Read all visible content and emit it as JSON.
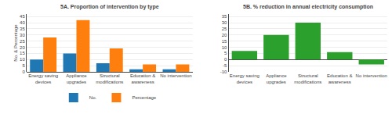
{
  "chart_data": [
    {
      "type": "bar",
      "title": "5A. Proportion of intervention by type",
      "categories": [
        "Energy saving\ndevices",
        "Appliance\nupgrades",
        "Structural\nmodifications",
        "Education &\nawareness",
        "No intervention"
      ],
      "series": [
        {
          "name": "No.",
          "values": [
            10,
            15,
            7,
            2,
            2
          ]
        },
        {
          "name": "Percentage",
          "values": [
            28,
            42,
            19,
            6,
            6
          ]
        }
      ],
      "ylabel": "No. & Percentage",
      "ylim": [
        0,
        47
      ],
      "yticks": [
        0,
        5,
        10,
        15,
        20,
        25,
        30,
        35,
        40,
        45
      ],
      "grid": true,
      "legend": "bottom"
    },
    {
      "type": "bar",
      "title": "5B. % reduction in annual electricity consumption",
      "categories": [
        "Energy saving\ndevices",
        "Appliance\nupgrades",
        "Structural\nmodifications",
        "Education &\nawareness",
        "No intervention"
      ],
      "values": [
        7,
        20,
        30,
        6,
        -4
      ],
      "ylim": [
        -10,
        37
      ],
      "yticks": [
        -10,
        -5,
        0,
        5,
        10,
        15,
        20,
        25,
        30,
        35
      ],
      "grid": true
    }
  ]
}
